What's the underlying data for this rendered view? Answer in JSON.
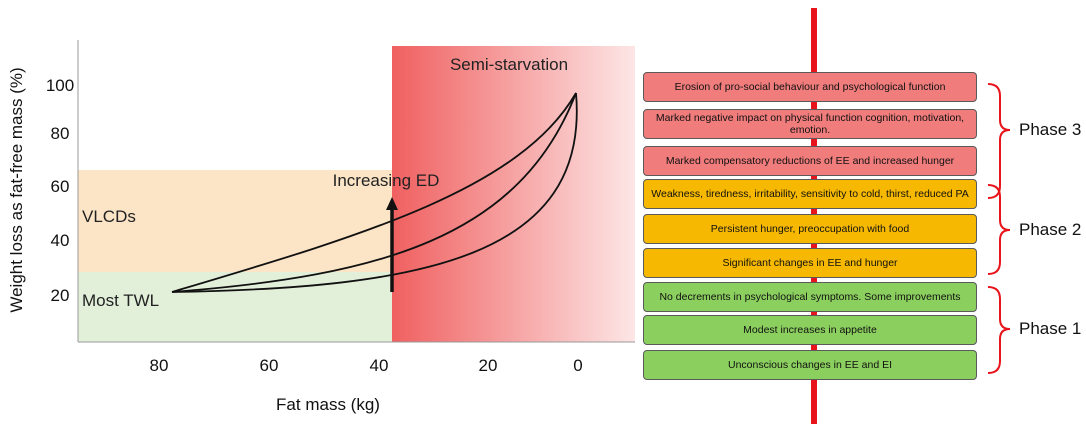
{
  "diagram": {
    "y_axis_label": "Weight loss as fat-free mass (%)",
    "x_axis_label": "Fat mass (kg)",
    "y_ticks": [
      "100",
      "80",
      "60",
      "40",
      "20"
    ],
    "x_ticks": [
      "80",
      "60",
      "40",
      "20",
      "0"
    ],
    "regions": {
      "semi_starvation": "Semi-starvation",
      "vlcds": "VLCDs",
      "most_twl": "Most TWL"
    },
    "arrow_label": "Increasing ED",
    "colors": {
      "vlcd_zone": "#fbe5c6",
      "twl_zone": "#e2efd9",
      "semi_starvation_start": "#f06060",
      "timeline_line": "#e8141b",
      "phase3_box": "#f07c7c",
      "phase2_box": "#f6b800",
      "phase1_box": "#8bcf5e",
      "bracket": "#e8141b"
    }
  },
  "phases": [
    {
      "label": "Phase 3",
      "items": [
        "Erosion of pro-social behaviour and psychological function",
        "Marked negative impact on physical function cognition, motivation, emotion.",
        "Marked compensatory reductions of EE and increased hunger"
      ]
    },
    {
      "label": "Phase 2",
      "items": [
        "Weakness, tiredness, irritability, sensitivity to cold, thirst, reduced PA",
        "Persistent hunger, preoccupation with food",
        "Significant changes in EE and hunger"
      ]
    },
    {
      "label": "Phase 1",
      "items": [
        "No decrements in psychological symptoms. Some improvements",
        "Modest increases in appetite",
        "Unconscious changes in EE and EI"
      ]
    }
  ]
}
